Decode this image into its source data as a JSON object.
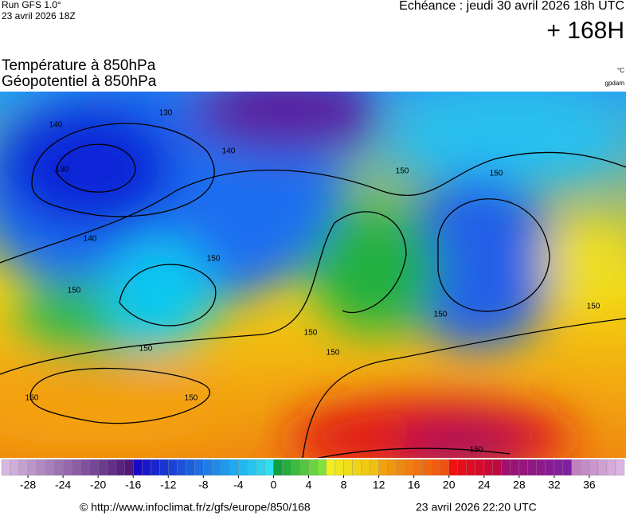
{
  "header": {
    "run": "Run GFS 1.0°",
    "run_date": "23 avril 2026 18Z",
    "forecast": "Echéance : jeudi 30 avril 2026 18h UTC",
    "lead": "+ 168H"
  },
  "map": {
    "title_1": "Température à 850hPa",
    "title_2": "Géopotentiel à 850hPa",
    "unit_1": "°C",
    "unit_2": "gpdam",
    "contour_labels": [
      140,
      130,
      130,
      140,
      150,
      150,
      140,
      150,
      150,
      150,
      150,
      150,
      150,
      150,
      150,
      150,
      150
    ]
  },
  "colorbar": {
    "lim": [
      -31,
      40
    ],
    "ticks": [
      -28,
      -24,
      -20,
      -16,
      -12,
      -8,
      -4,
      0,
      4,
      8,
      12,
      16,
      20,
      24,
      28,
      32,
      36
    ]
  },
  "footer": {
    "url": "© http://www.infoclimat.fr/z/gfs/europe/850/168",
    "generated": "23 avril 2026 22:20 UTC"
  }
}
